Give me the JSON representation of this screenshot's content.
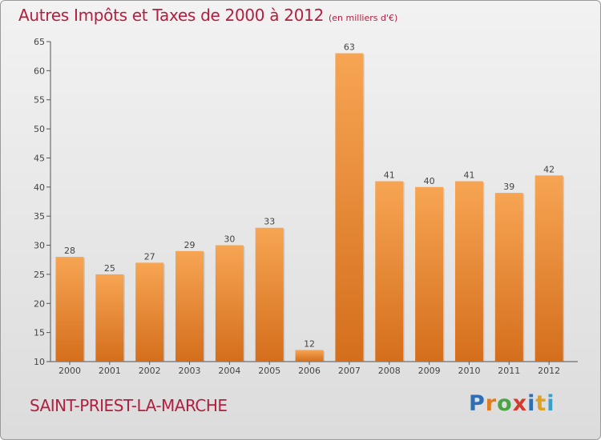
{
  "header": {
    "title": "Autres Impôts et Taxes de 2000 à 2012",
    "unit": "(en milliers d'€)"
  },
  "footer": {
    "commune": "SAINT-PRIEST-LA-MARCHE",
    "logo_letters": [
      "P",
      "r",
      "o",
      "x",
      "i",
      "t",
      "i"
    ],
    "logo_colors": [
      "#2f6db5",
      "#e07b22",
      "#4aa345",
      "#d23a2b",
      "#2f6db5",
      "#e0a020",
      "#3aa0c8"
    ]
  },
  "colors": {
    "bar_top": "#f7a553",
    "bar_bottom": "#d46e1c",
    "axis": "#555555",
    "grid": "#c8c8c8"
  },
  "chart_data": {
    "type": "bar",
    "title": "Autres Impôts et Taxes de 2000 à 2012",
    "subtitle": "(en milliers d'€)",
    "xlabel": "",
    "ylabel": "",
    "categories": [
      "2000",
      "2001",
      "2002",
      "2003",
      "2004",
      "2005",
      "2006",
      "2007",
      "2008",
      "2009",
      "2010",
      "2011",
      "2012"
    ],
    "values": [
      28,
      25,
      27,
      29,
      30,
      33,
      12,
      63,
      41,
      40,
      41,
      39,
      42
    ],
    "ylim": [
      10,
      65
    ],
    "yticks": [
      10,
      15,
      20,
      25,
      30,
      35,
      40,
      45,
      50,
      55,
      60,
      65
    ],
    "grid": false,
    "legend": "none"
  }
}
